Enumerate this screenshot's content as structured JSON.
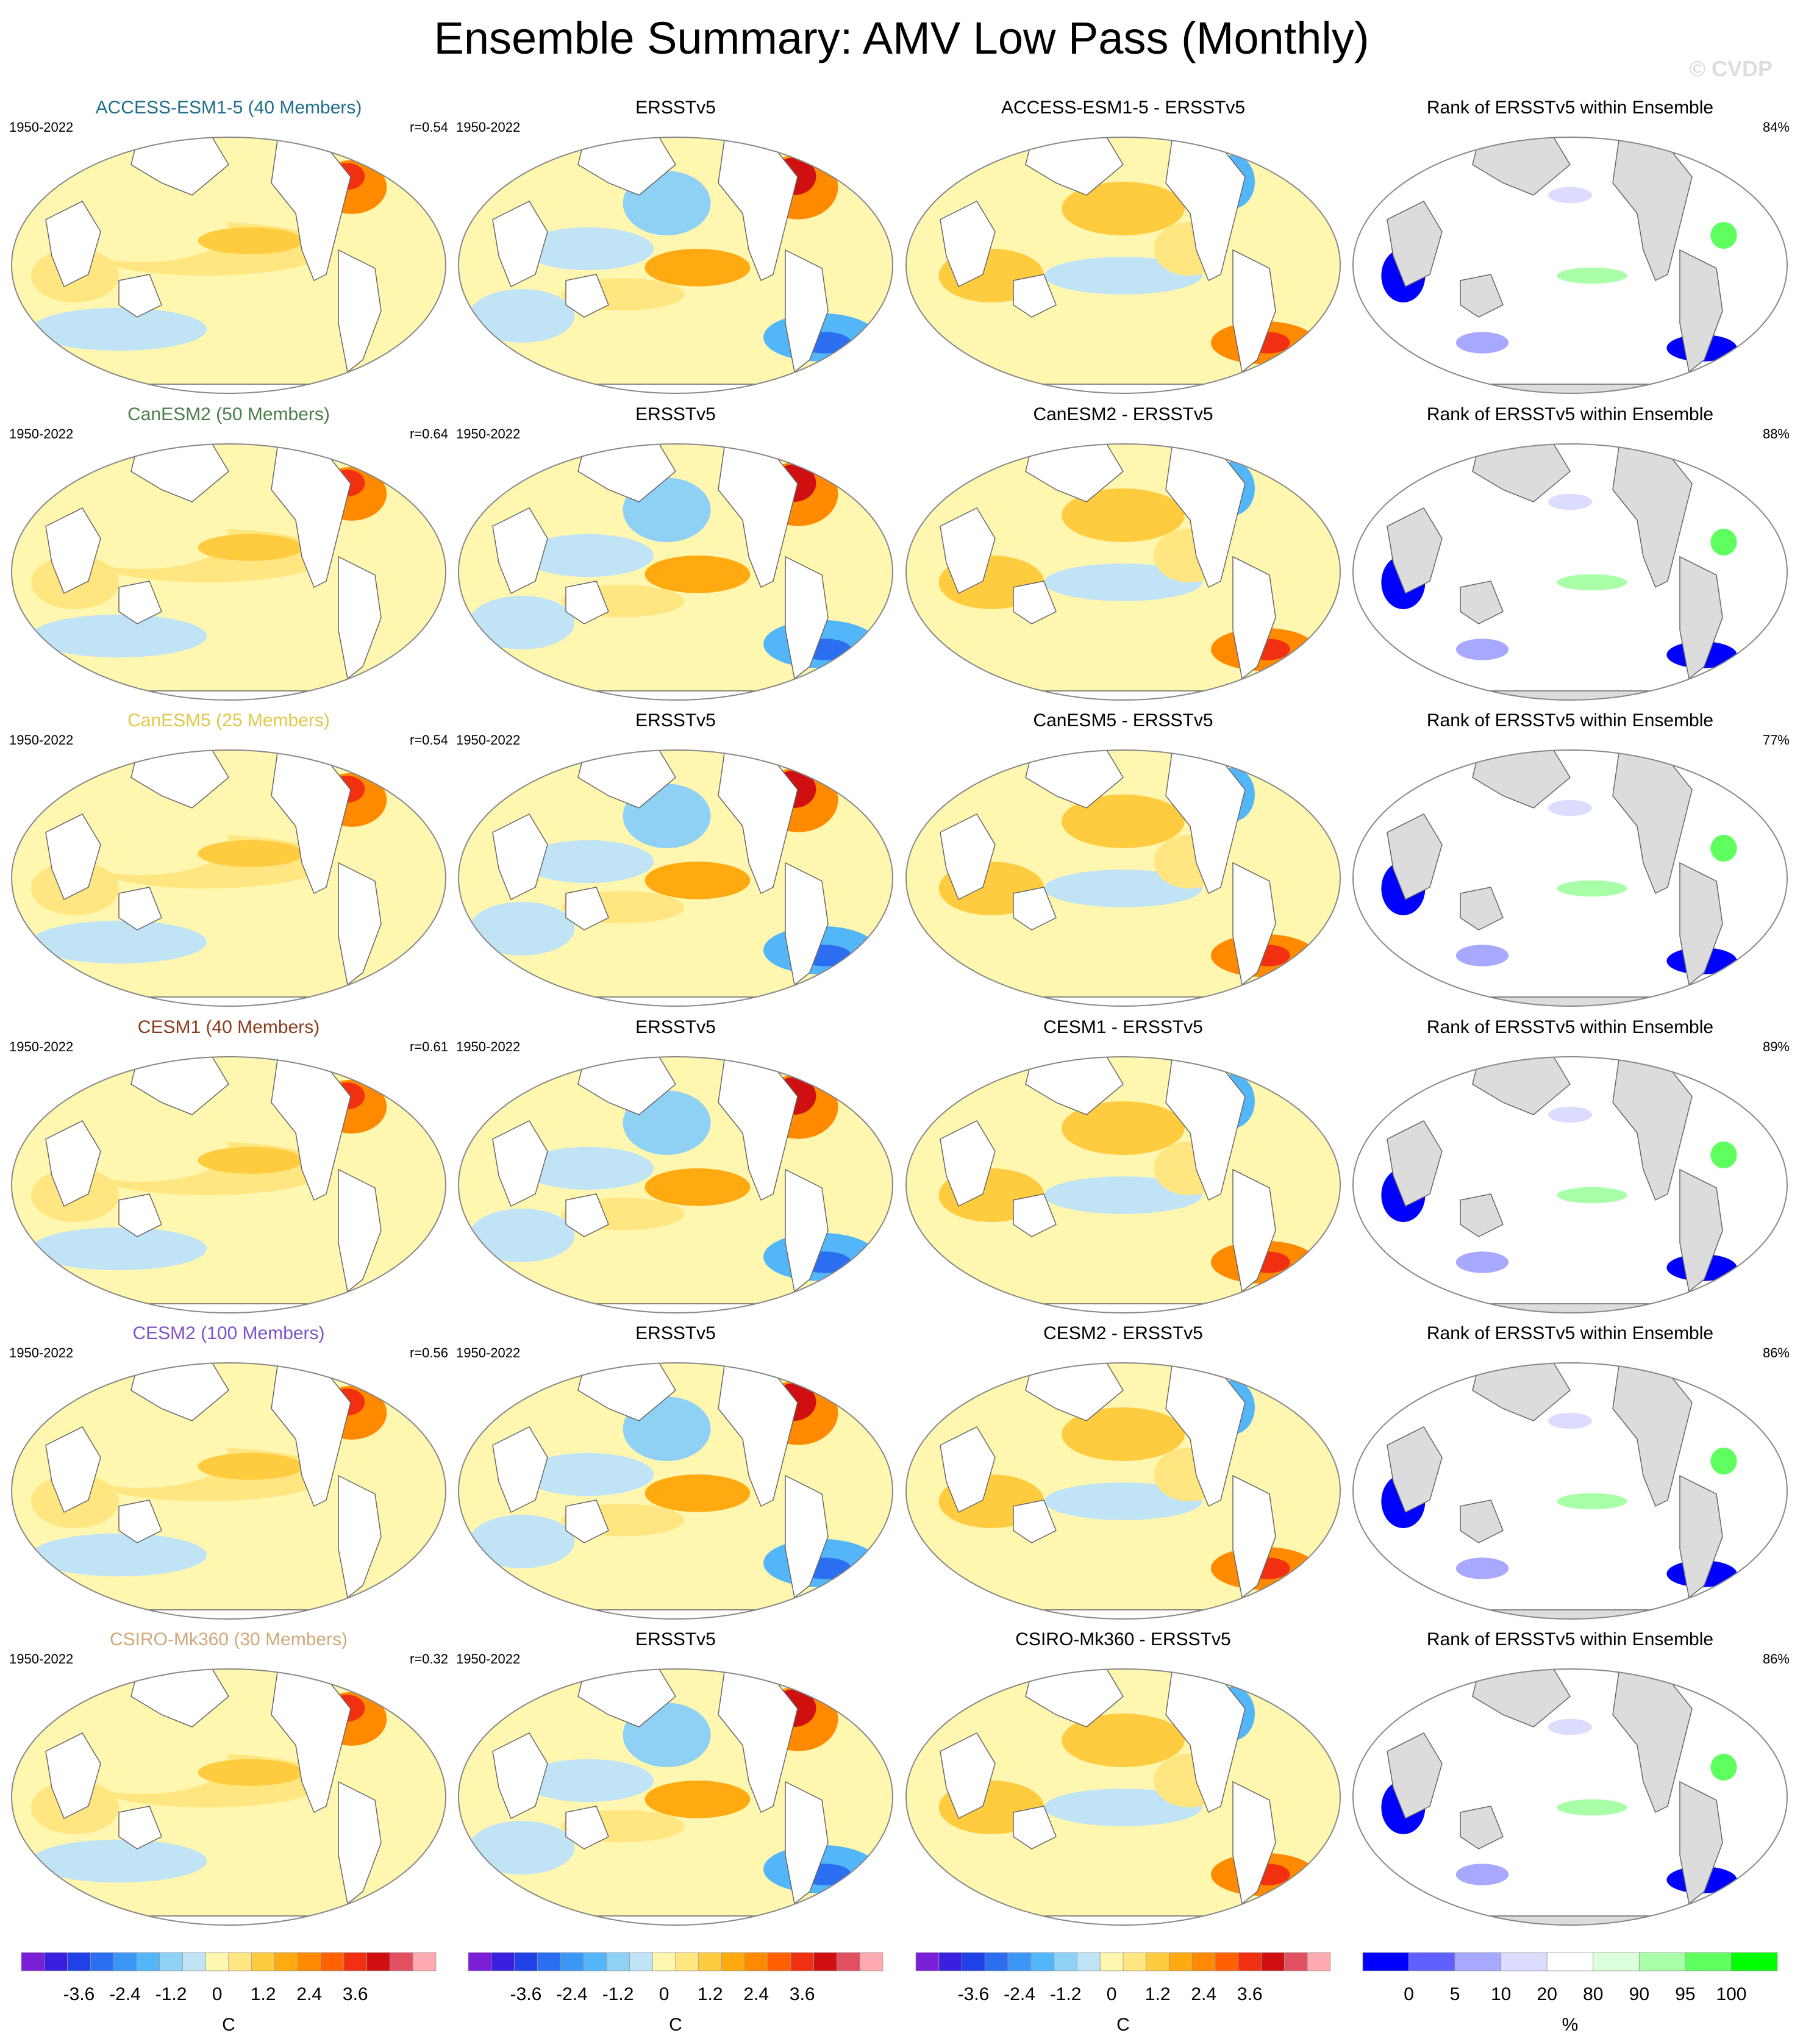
{
  "title": "Ensemble Summary: AMV Low Pass (Monthly)",
  "credit": "© CVDP",
  "period": "1950-2022",
  "obs_name": "ERSSTv5",
  "rank_title": "Rank of ERSSTv5 within Ensemble",
  "rows": [
    {
      "model": "ACCESS-ESM1-5 (40 Members)",
      "color": "#1f6e8c",
      "r": "r=0.54",
      "diff": "ACCESS-ESM1-5 - ERSSTv5",
      "rank_pct": "84%"
    },
    {
      "model": "CanESM2 (50 Members)",
      "color": "#4a7d4a",
      "r": "r=0.64",
      "diff": "CanESM2 - ERSSTv5",
      "rank_pct": "88%"
    },
    {
      "model": "CanESM5 (25 Members)",
      "color": "#e0c84a",
      "r": "r=0.54",
      "diff": "CanESM5 - ERSSTv5",
      "rank_pct": "77%"
    },
    {
      "model": "CESM1 (40 Members)",
      "color": "#8b3a1a",
      "r": "r=0.61",
      "diff": "CESM1 - ERSSTv5",
      "rank_pct": "89%"
    },
    {
      "model": "CESM2 (100 Members)",
      "color": "#7b52c8",
      "r": "r=0.56",
      "diff": "CESM2 - ERSSTv5",
      "rank_pct": "86%"
    },
    {
      "model": "CSIRO-Mk360 (30 Members)",
      "color": "#d2a878",
      "r": "r=0.32",
      "diff": "CSIRO-Mk360 - ERSSTv5",
      "rank_pct": "86%"
    }
  ],
  "colorbar_sst": {
    "unit": "C",
    "ticks": [
      "-3.6",
      "-2.4",
      "-1.2",
      "0",
      "1.2",
      "2.4",
      "3.6"
    ],
    "colors": [
      "#7a1fd6",
      "#3b1fe0",
      "#2040e8",
      "#2c6ef0",
      "#3c96f5",
      "#52b6f9",
      "#8fd0f5",
      "#c0e4f5",
      "#fff6b0",
      "#ffe680",
      "#ffcc40",
      "#ffaa10",
      "#ff8a00",
      "#ff6000",
      "#f03010",
      "#d01010",
      "#e05060",
      "#ffaab0"
    ]
  },
  "colorbar_rank": {
    "unit": "%",
    "ticks": [
      "0",
      "5",
      "10",
      "20",
      "80",
      "90",
      "95",
      "100"
    ],
    "colors": [
      "#0000ff",
      "#6060ff",
      "#a8a8ff",
      "#dcdcff",
      "#ffffff",
      "#dcffdc",
      "#a8ffa8",
      "#60ff60",
      "#00ff00"
    ]
  },
  "chart_data": {
    "type": "heatmap",
    "title": "Ensemble Summary: AMV Low Pass (Monthly)",
    "period": "1950-2022",
    "models": [
      {
        "name": "ACCESS-ESM1-5",
        "members": 40,
        "pattern_correlation": 0.54,
        "rank_percent": 84
      },
      {
        "name": "CanESM2",
        "members": 50,
        "pattern_correlation": 0.64,
        "rank_percent": 88
      },
      {
        "name": "CanESM5",
        "members": 25,
        "pattern_correlation": 0.54,
        "rank_percent": 77
      },
      {
        "name": "CESM1",
        "members": 40,
        "pattern_correlation": 0.61,
        "rank_percent": 89
      },
      {
        "name": "CESM2",
        "members": 100,
        "pattern_correlation": 0.56,
        "rank_percent": 86
      },
      {
        "name": "CSIRO-Mk360",
        "members": 30,
        "pattern_correlation": 0.32,
        "rank_percent": 86
      }
    ],
    "sst_colorbar_range": [
      -3.6,
      3.6
    ],
    "rank_colorbar_levels": [
      0,
      5,
      10,
      20,
      80,
      90,
      95,
      100
    ]
  }
}
